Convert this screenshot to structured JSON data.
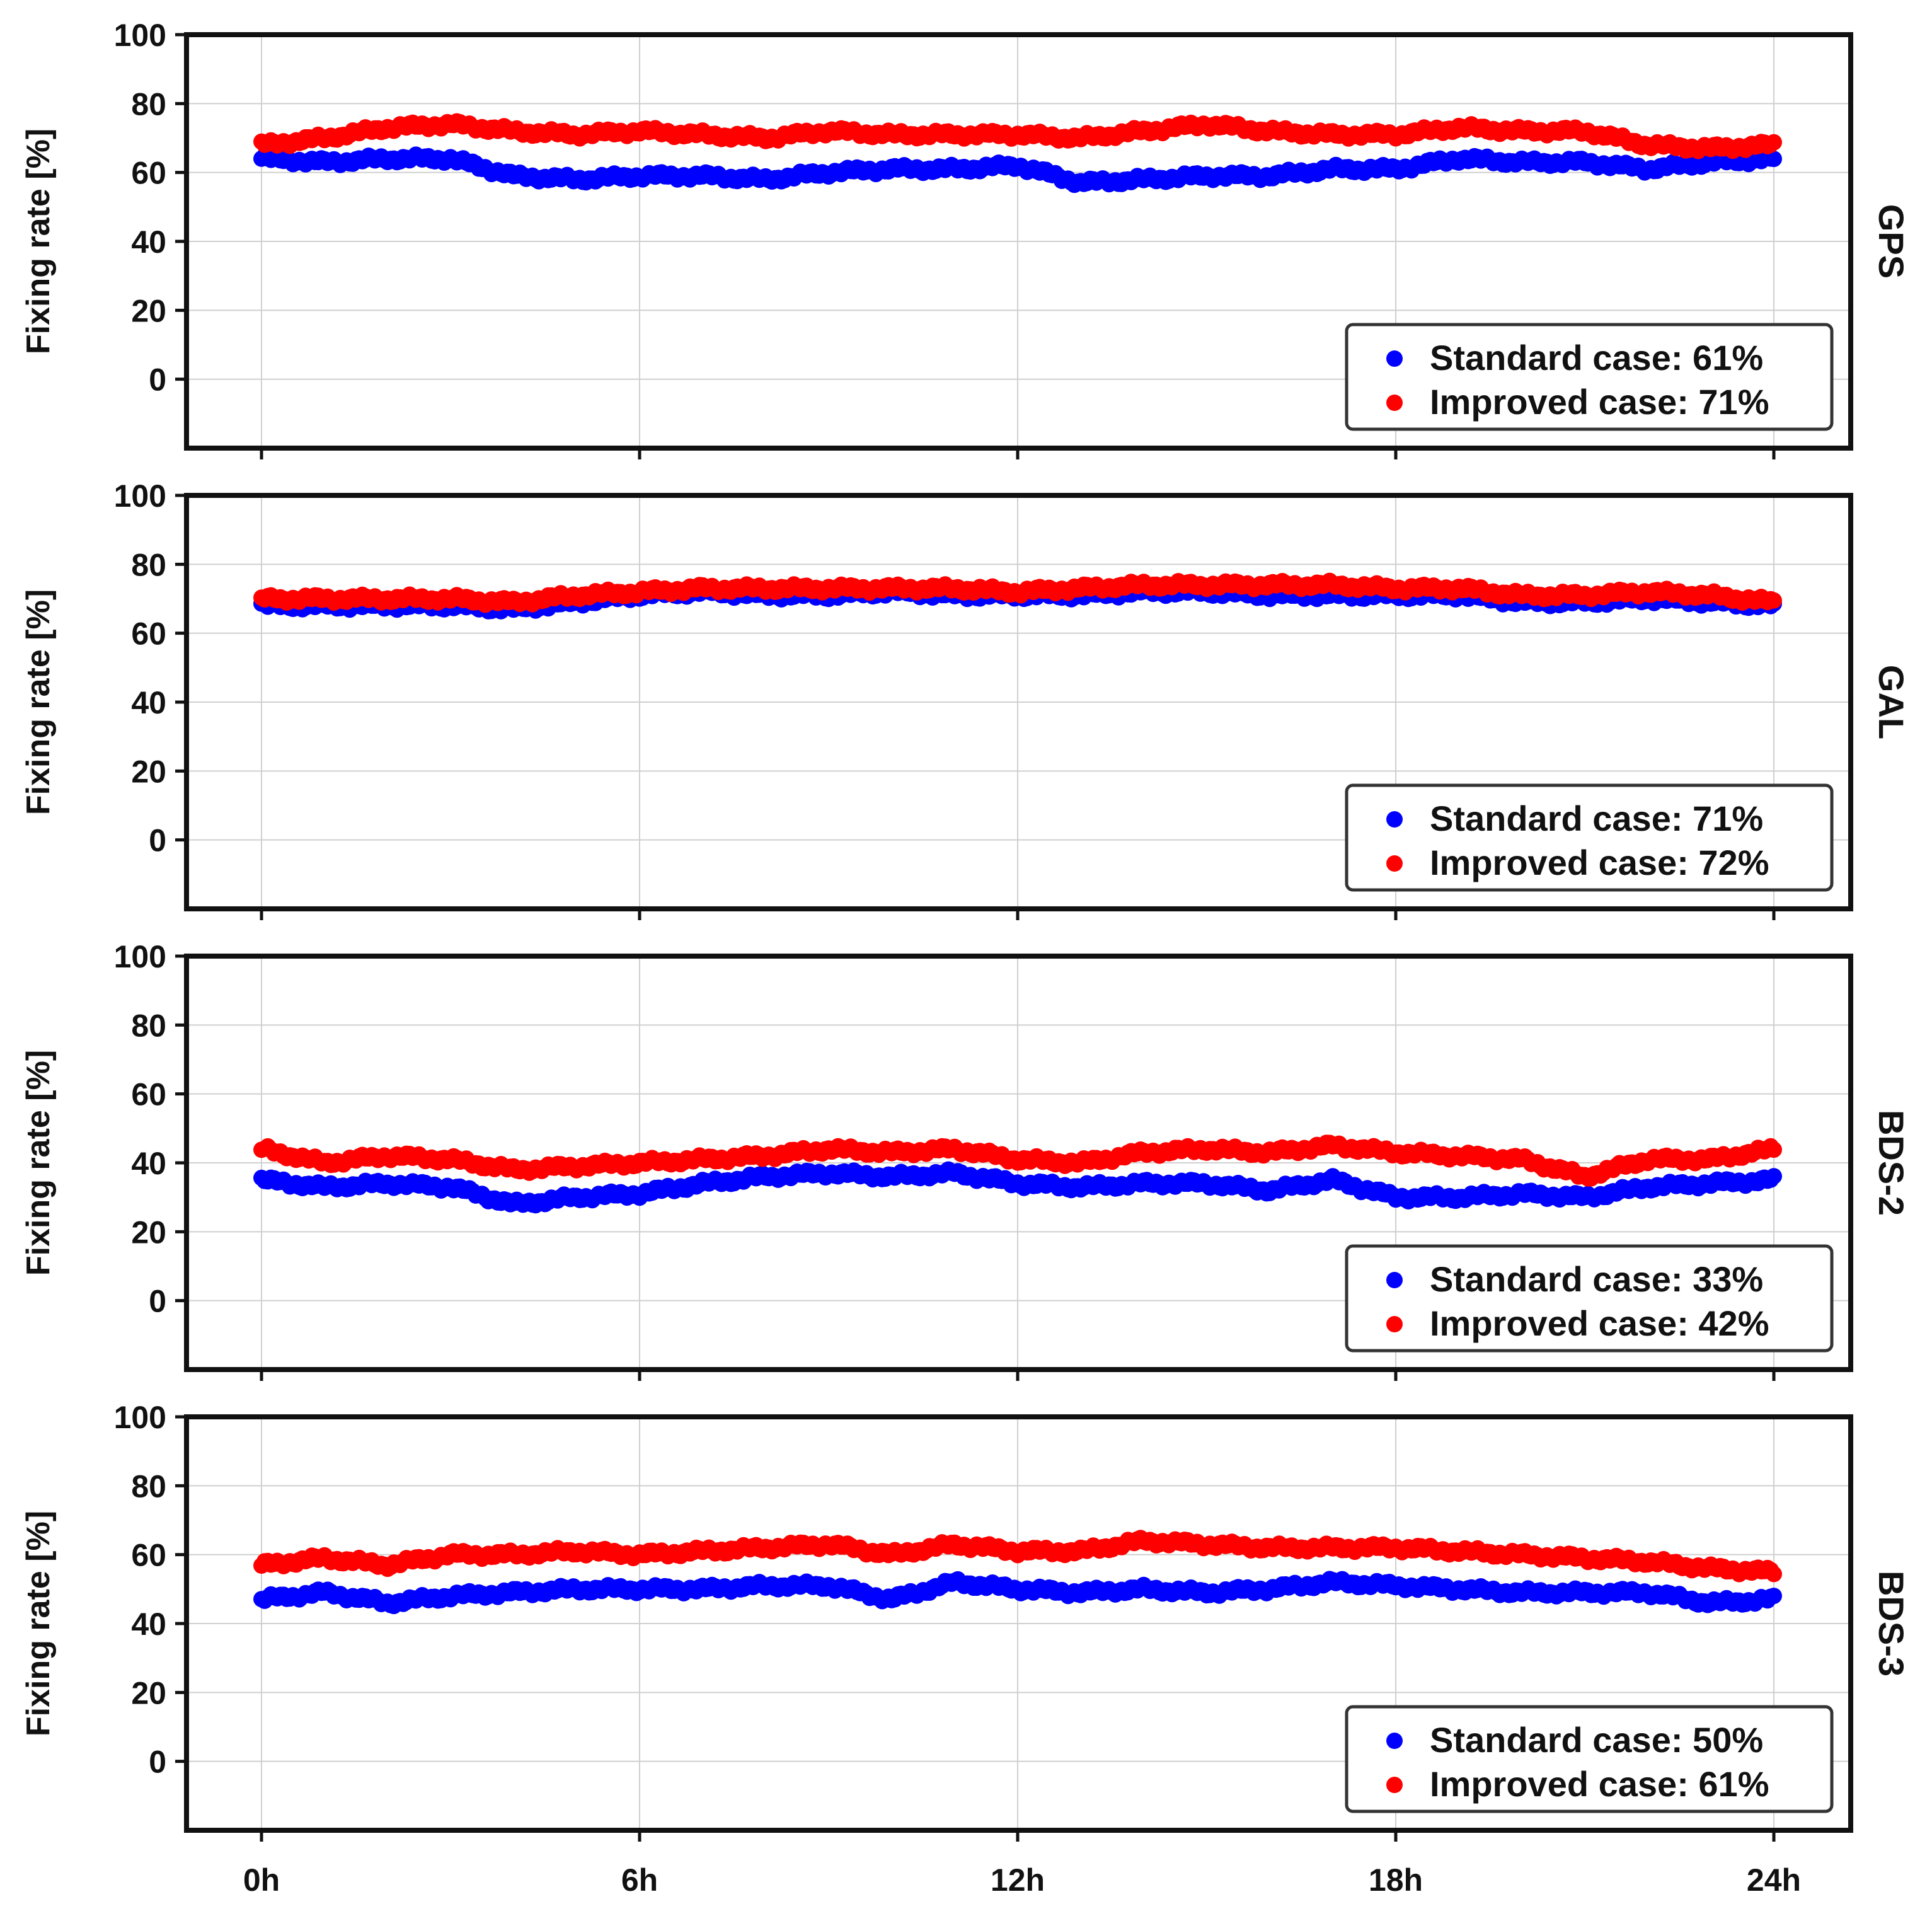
{
  "figure": {
    "x_ticks": [
      "0h",
      "6h",
      "12h",
      "18h",
      "24h"
    ]
  },
  "chart_data": [
    {
      "type": "scatter",
      "panel_label": "GPS",
      "ylabel": "Fixing rate [%]",
      "xlim": [
        0,
        24
      ],
      "ylim": [
        -20,
        100
      ],
      "y_ticks": [
        0,
        20,
        40,
        60,
        80,
        100
      ],
      "grid": true,
      "legend_position": "lower-right",
      "colors": [
        "#0000ff",
        "#ff0000"
      ],
      "series": [
        {
          "name": "Standard case",
          "legend_label": "Standard case: 61%",
          "x": [
            0,
            1,
            2,
            3,
            4,
            5,
            6,
            7,
            8,
            9,
            10,
            11,
            12,
            13,
            14,
            15,
            16,
            17,
            18,
            19,
            20,
            21,
            22,
            23,
            24
          ],
          "y": [
            64,
            63,
            64,
            64,
            59,
            58,
            59,
            59,
            58,
            60,
            61,
            61,
            62,
            57,
            58,
            59,
            59,
            61,
            61,
            64,
            63,
            63,
            61,
            63,
            64
          ]
        },
        {
          "name": "Improved case",
          "legend_label": "Improved case: 71%",
          "x": [
            0,
            1,
            2,
            3,
            4,
            5,
            6,
            7,
            8,
            9,
            10,
            11,
            12,
            13,
            14,
            15,
            16,
            17,
            18,
            19,
            20,
            21,
            22,
            23,
            24
          ],
          "y": [
            68,
            70,
            73,
            74,
            72,
            71,
            72,
            71,
            70,
            72,
            71,
            71,
            71,
            70,
            72,
            74,
            72,
            71,
            71,
            73,
            72,
            72,
            68,
            67,
            68
          ]
        }
      ]
    },
    {
      "type": "scatter",
      "panel_label": "GAL",
      "ylabel": "Fixing rate [%]",
      "xlim": [
        0,
        24
      ],
      "ylim": [
        -20,
        100
      ],
      "y_ticks": [
        0,
        20,
        40,
        60,
        80,
        100
      ],
      "grid": true,
      "legend_position": "lower-right",
      "colors": [
        "#0000ff",
        "#ff0000"
      ],
      "series": [
        {
          "name": "Standard case",
          "legend_label": "Standard case: 71%",
          "x": [
            0,
            1,
            2,
            3,
            4,
            5,
            6,
            7,
            8,
            9,
            10,
            11,
            12,
            13,
            14,
            15,
            16,
            17,
            18,
            19,
            20,
            21,
            22,
            23,
            24
          ],
          "y": [
            68,
            68,
            68,
            68,
            67,
            69,
            71,
            72,
            71,
            71,
            72,
            71,
            71,
            71,
            72,
            72,
            71,
            71,
            71,
            71,
            69,
            69,
            70,
            69,
            68
          ]
        },
        {
          "name": "Improved case",
          "legend_label": "Improved case: 72%",
          "x": [
            0,
            1,
            2,
            3,
            4,
            5,
            6,
            7,
            8,
            9,
            10,
            11,
            12,
            13,
            14,
            15,
            16,
            17,
            18,
            19,
            20,
            21,
            22,
            23,
            24
          ],
          "y": [
            70,
            70,
            70,
            70,
            69,
            71,
            72,
            73,
            73,
            73,
            73,
            73,
            72,
            73,
            74,
            74,
            74,
            74,
            73,
            73,
            71,
            71,
            72,
            71,
            69
          ]
        }
      ]
    },
    {
      "type": "scatter",
      "panel_label": "BDS-2",
      "ylabel": "Fixing rate [%]",
      "xlim": [
        0,
        24
      ],
      "ylim": [
        -20,
        100
      ],
      "y_ticks": [
        0,
        20,
        40,
        60,
        80,
        100
      ],
      "grid": true,
      "legend_position": "lower-right",
      "colors": [
        "#0000ff",
        "#ff0000"
      ],
      "series": [
        {
          "name": "Standard case",
          "legend_label": "Standard case: 33%",
          "x": [
            0,
            1,
            2,
            3,
            4,
            5,
            6,
            7,
            8,
            9,
            10,
            11,
            12,
            13,
            14,
            15,
            16,
            17,
            18,
            19,
            20,
            21,
            22,
            23,
            24
          ],
          "y": [
            35,
            33,
            34,
            33,
            28,
            30,
            31,
            34,
            36,
            37,
            36,
            37,
            34,
            33,
            34,
            34,
            32,
            35,
            30,
            30,
            31,
            30,
            33,
            34,
            35
          ]
        },
        {
          "name": "Improved case",
          "legend_label": "Improved case: 42%",
          "x": [
            0,
            1,
            2,
            3,
            4,
            5,
            6,
            7,
            8,
            9,
            10,
            11,
            12,
            13,
            14,
            15,
            16,
            17,
            18,
            19,
            20,
            21,
            22,
            23,
            24
          ],
          "y": [
            44,
            40,
            42,
            41,
            38,
            39,
            40,
            41,
            42,
            44,
            43,
            44,
            41,
            40,
            43,
            44,
            43,
            45,
            43,
            42,
            41,
            36,
            41,
            41,
            44
          ]
        }
      ]
    },
    {
      "type": "scatter",
      "panel_label": "BDS-3",
      "ylabel": "Fixing rate [%]",
      "xlim": [
        0,
        24
      ],
      "ylim": [
        -20,
        100
      ],
      "y_ticks": [
        0,
        20,
        40,
        60,
        80,
        100
      ],
      "grid": true,
      "legend_position": "lower-right",
      "colors": [
        "#0000ff",
        "#ff0000"
      ],
      "series": [
        {
          "name": "Standard case",
          "legend_label": "Standard case: 50%",
          "x": [
            0,
            1,
            2,
            3,
            4,
            5,
            6,
            7,
            8,
            9,
            10,
            11,
            12,
            13,
            14,
            15,
            16,
            17,
            18,
            19,
            20,
            21,
            22,
            23,
            24
          ],
          "y": [
            47,
            49,
            46,
            48,
            49,
            50,
            50,
            50,
            51,
            51,
            47,
            52,
            50,
            49,
            50,
            49,
            50,
            52,
            51,
            50,
            49,
            49,
            49,
            46,
            47
          ]
        },
        {
          "name": "Improved case",
          "legend_label": "Improved case: 61%",
          "x": [
            0,
            1,
            2,
            3,
            4,
            5,
            6,
            7,
            8,
            9,
            10,
            11,
            12,
            13,
            14,
            15,
            16,
            17,
            18,
            19,
            20,
            21,
            22,
            23,
            24
          ],
          "y": [
            57,
            59,
            57,
            60,
            60,
            61,
            60,
            61,
            62,
            63,
            60,
            63,
            61,
            61,
            64,
            63,
            62,
            62,
            62,
            61,
            60,
            59,
            58,
            56,
            55
          ]
        }
      ]
    }
  ]
}
